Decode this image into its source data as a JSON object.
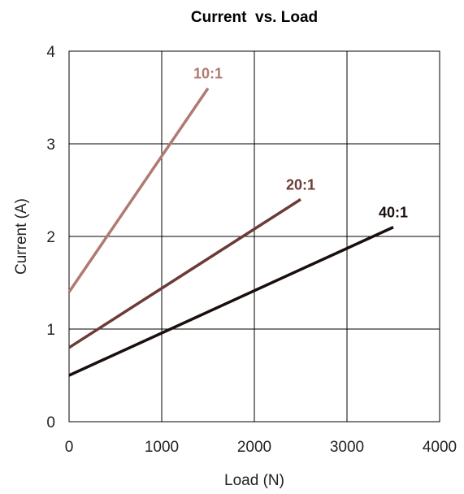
{
  "chart_data": {
    "type": "line",
    "title": "Current  vs. Load",
    "xlabel": "Load (N)",
    "ylabel": "Current (A)",
    "xlim": [
      0,
      4000
    ],
    "ylim": [
      0,
      4
    ],
    "xticks": [
      0,
      1000,
      2000,
      3000,
      4000
    ],
    "yticks": [
      0,
      1,
      2,
      3,
      4
    ],
    "grid": true,
    "legend": "none",
    "series": [
      {
        "name": "10:1",
        "color": "#b07a72",
        "x": [
          0,
          1500
        ],
        "y": [
          1.4,
          3.6
        ]
      },
      {
        "name": "20:1",
        "color": "#6b3c36",
        "x": [
          0,
          2500
        ],
        "y": [
          0.8,
          2.4
        ]
      },
      {
        "name": "40:1",
        "color": "#1a0f0d",
        "x": [
          0,
          3500
        ],
        "y": [
          0.5,
          2.1
        ]
      }
    ]
  }
}
